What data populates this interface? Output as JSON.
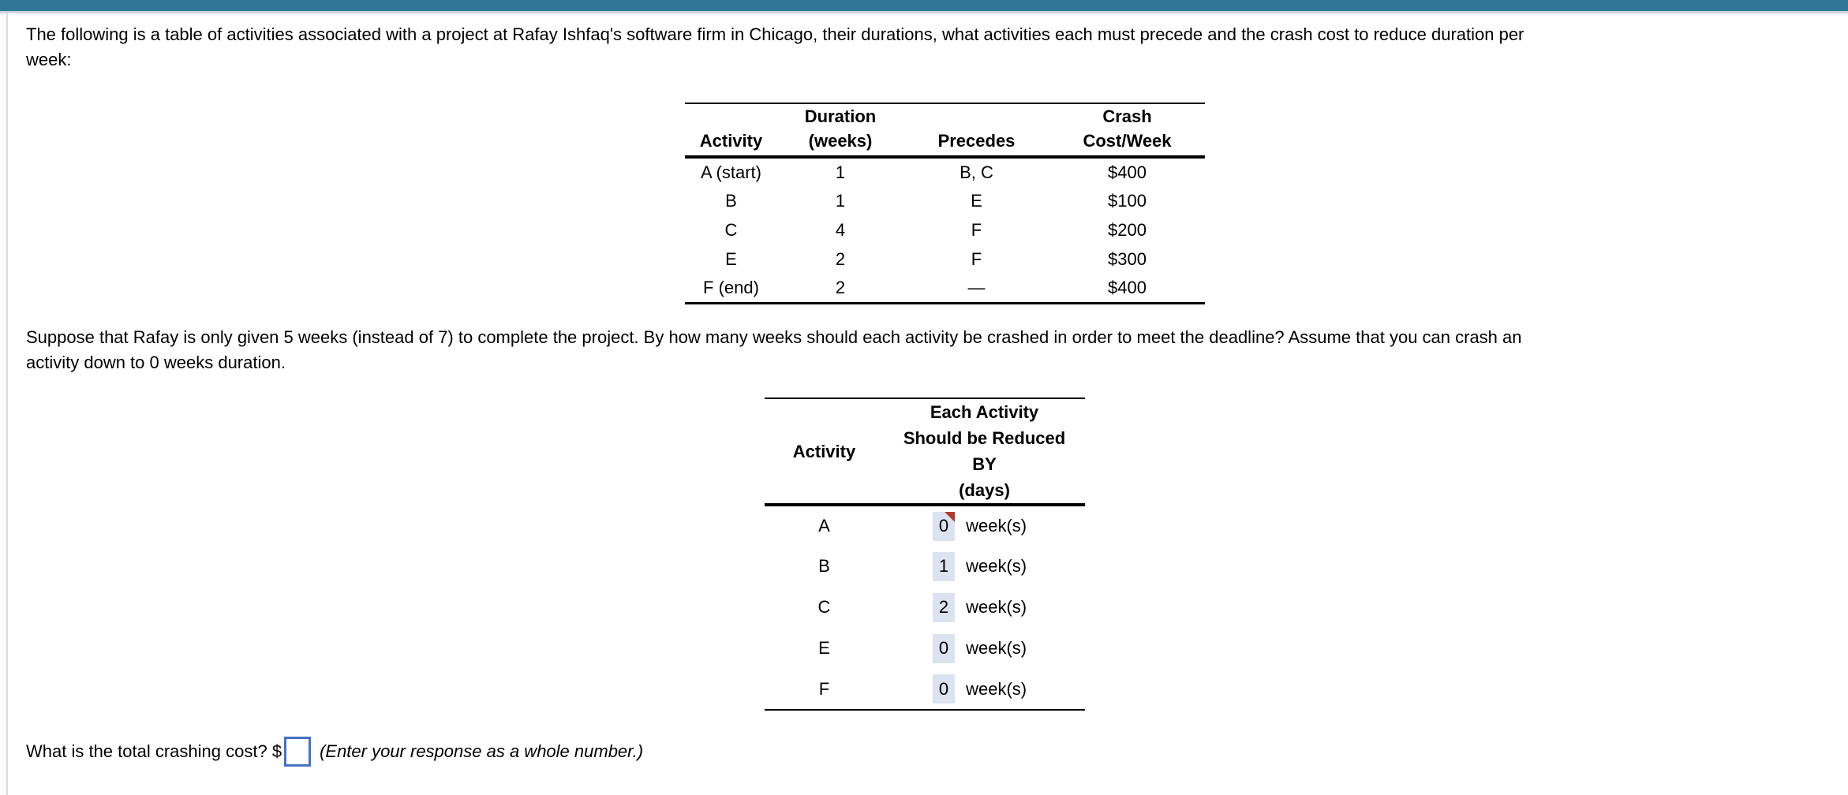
{
  "page": {
    "intro_lines": [
      "The following is a table of activities associated with a project at Rafay Ishfaq's software firm in Chicago, their durations, what activities each must precede and the crash cost to reduce duration per",
      "week:"
    ],
    "crash_lines": [
      "Suppose that Rafay is only given 5 weeks (instead of 7) to complete the project. By how many weeks should each activity be crashed in order to meet the deadline? Assume that you can crash an",
      "activity down to 0 weeks duration."
    ],
    "total_cost_label": "What is the total crashing cost? $",
    "total_cost_value": "",
    "total_cost_hint": "(Enter your response as a whole number.)"
  },
  "activity_table": {
    "headers": {
      "activity": "Activity",
      "duration_line1": "Duration",
      "duration_line2": "(weeks)",
      "precedes": "Precedes",
      "crash_line1": "Crash",
      "crash_line2": "Cost/Week"
    },
    "rows": [
      {
        "activity": "A (start)",
        "duration": "1",
        "precedes": "B, C",
        "crash_cost": "$400"
      },
      {
        "activity": "B",
        "duration": "1",
        "precedes": "E",
        "crash_cost": "$100"
      },
      {
        "activity": "C",
        "duration": "4",
        "precedes": "F",
        "crash_cost": "$200"
      },
      {
        "activity": "E",
        "duration": "2",
        "precedes": "F",
        "crash_cost": "$300"
      },
      {
        "activity": "F (end)",
        "duration": "2",
        "precedes": "—",
        "crash_cost": "$400"
      }
    ]
  },
  "reduction_table": {
    "headers": {
      "activity": "Activity",
      "reduce_lines": [
        "Each Activity",
        "Should be Reduced",
        "BY",
        "(days)"
      ]
    },
    "rows": [
      {
        "activity": "A",
        "value": "0",
        "unit": "week(s)",
        "flagged": true
      },
      {
        "activity": "B",
        "value": "1",
        "unit": "week(s)",
        "flagged": false
      },
      {
        "activity": "C",
        "value": "2",
        "unit": "week(s)",
        "flagged": false
      },
      {
        "activity": "E",
        "value": "0",
        "unit": "week(s)",
        "flagged": false
      },
      {
        "activity": "F",
        "value": "0",
        "unit": "week(s)",
        "flagged": false
      }
    ]
  },
  "colors": {
    "topbar_teal": "#2f7795",
    "topbar_divider": "#ccd6dd",
    "answer_field_fill": "#dbe2f0",
    "flag_red": "#b03a2e",
    "focused_input_border": "#4472c4"
  }
}
